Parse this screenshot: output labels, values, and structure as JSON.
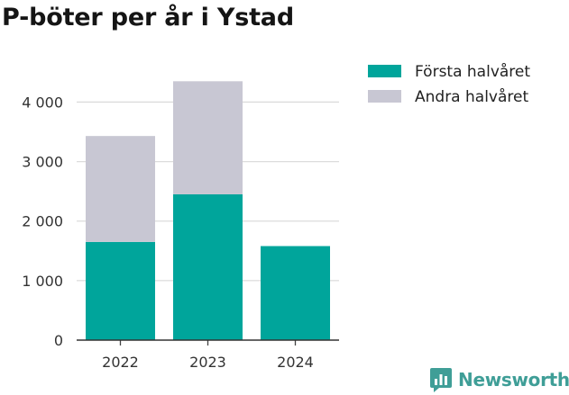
{
  "chart_data": {
    "type": "bar",
    "stacked": true,
    "title": "P-böter per år i Ystad",
    "xlabel": "",
    "ylabel": "",
    "categories": [
      "2022",
      "2023",
      "2024"
    ],
    "series": [
      {
        "name": "Första halvåret",
        "color": "#00a59b",
        "values": [
          1650,
          2450,
          1580
        ]
      },
      {
        "name": "Andra halvåret",
        "color": "#c8c7d3",
        "values": [
          1780,
          1900,
          0
        ]
      }
    ],
    "ylim": [
      0,
      4400
    ],
    "yticks": [
      0,
      1000,
      2000,
      3000,
      4000
    ],
    "ytick_labels": [
      "0",
      "1 000",
      "2 000",
      "3 000",
      "4 000"
    ],
    "grid": true,
    "legend_position": "top-right"
  },
  "brand": {
    "name": "Newsworthy",
    "icon": "newsworthy-logo-icon"
  }
}
